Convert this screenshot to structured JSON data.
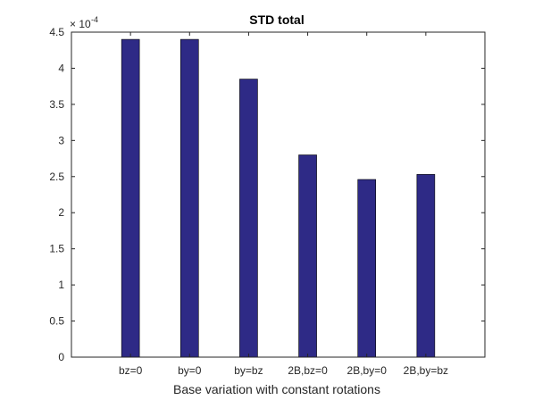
{
  "chart_data": {
    "type": "bar",
    "title": "STD total",
    "xlabel": "Base variation with constant rotations",
    "ylabel": "",
    "categories": [
      "bz=0",
      "by=0",
      "by=bz",
      "2B,bz=0",
      "2B,by=0",
      "2B,by=bz"
    ],
    "values": [
      0.00044,
      0.00044,
      0.000385,
      0.00028,
      0.000246,
      0.000253
    ],
    "ylim": [
      0,
      0.00045
    ],
    "yticks": [
      "0",
      "0.5",
      "1",
      "1.5",
      "2",
      "2.5",
      "3",
      "3.5",
      "4",
      "4.5"
    ],
    "y_exponent_base": "× 10",
    "y_exponent": "-4",
    "bar_color": "#2e2a86",
    "grid": false,
    "legend": "none"
  }
}
